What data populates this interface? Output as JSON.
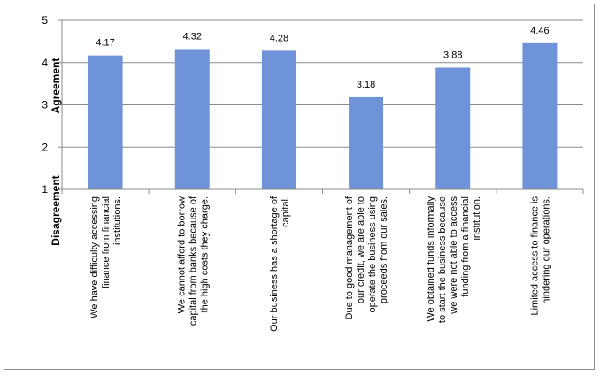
{
  "chart_data": {
    "type": "bar",
    "categories": [
      [
        "We have difficulty accessing",
        "finance from financial",
        "institutions."
      ],
      [
        "We cannot afford to borrow",
        "capital from banks because of",
        "the high costs     they charge."
      ],
      [
        "Our business has a shortage of",
        "capital."
      ],
      [
        "Due to good management of",
        "our credit, we are able to",
        "operate the business using",
        "proceeds from our sales."
      ],
      [
        "We obtained funds informally",
        "to start the business because",
        "we were not     able to access",
        "funding from a financial",
        "institution."
      ],
      [
        "Limited access to finance is",
        "hindering our operations."
      ]
    ],
    "values": [
      4.17,
      4.32,
      4.28,
      3.18,
      3.88,
      4.46
    ],
    "data_labels": [
      "4.17",
      "4.32",
      "4.28",
      "3.18",
      "3.88",
      "4.46"
    ],
    "y_ticks": [
      "1",
      "2",
      "3",
      "4",
      "5"
    ],
    "ylim": [
      1,
      5
    ],
    "ylabel_top": "Agreement",
    "ylabel_bottom": "Disagreement",
    "grid": true,
    "bar_color": "#6f93d8",
    "grid_color": "#8c8c8c"
  }
}
